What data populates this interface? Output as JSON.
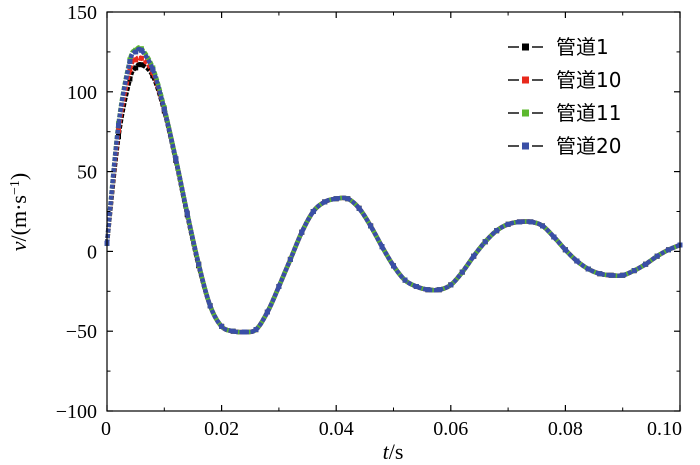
{
  "chart_data": {
    "type": "line",
    "title": "",
    "xlabel": {
      "var": "t",
      "unit": "/s"
    },
    "ylabel": {
      "var": "v",
      "unit": "/(m·s",
      "sup": "−1",
      "close": ")"
    },
    "xlim": [
      0,
      0.1
    ],
    "ylim": [
      -100,
      150
    ],
    "x_ticks": [
      0,
      0.02,
      0.04,
      0.06,
      0.08,
      0.1
    ],
    "x_tick_labels": [
      "0",
      "0.02",
      "0.04",
      "0.06",
      "0.08",
      "0.10"
    ],
    "y_ticks": [
      -100,
      -50,
      0,
      50,
      100,
      150
    ],
    "y_tick_labels": [
      "−100",
      "−50",
      "0",
      "50",
      "100",
      "150"
    ],
    "grid": false,
    "legend_position": "top-right",
    "x": [
      0,
      0.002,
      0.004,
      0.005,
      0.006,
      0.008,
      0.01,
      0.012,
      0.014,
      0.016,
      0.018,
      0.02,
      0.022,
      0.024,
      0.026,
      0.028,
      0.03,
      0.032,
      0.034,
      0.036,
      0.038,
      0.04,
      0.042,
      0.044,
      0.046,
      0.048,
      0.05,
      0.052,
      0.054,
      0.056,
      0.058,
      0.06,
      0.062,
      0.064,
      0.066,
      0.068,
      0.07,
      0.072,
      0.074,
      0.076,
      0.078,
      0.08,
      0.082,
      0.084,
      0.086,
      0.088,
      0.09,
      0.092,
      0.094,
      0.096,
      0.098,
      0.1
    ],
    "series": [
      {
        "name": "管道1",
        "color": "#000000",
        "values": [
          5,
          72,
          108,
          115,
          117,
          110,
          88,
          57,
          23,
          -9,
          -34,
          -47,
          -50,
          -50.5,
          -49,
          -38,
          -22,
          -5,
          12,
          25,
          31,
          33,
          33,
          27,
          16,
          3,
          -9,
          -18,
          -22,
          -24,
          -24,
          -21,
          -13,
          -3,
          6,
          13,
          17,
          18.5,
          18.5,
          16,
          9,
          1,
          -6,
          -11,
          -14,
          -15,
          -15,
          -12,
          -8,
          -3,
          1,
          4
        ]
      },
      {
        "name": "管道10",
        "color": "#e8291c",
        "values": [
          5,
          76,
          114,
          120,
          121,
          112,
          89,
          58,
          24,
          -8,
          -34,
          -47,
          -50,
          -50.5,
          -49,
          -38,
          -22,
          -5,
          12,
          25,
          31,
          33,
          33,
          27,
          16,
          3,
          -9,
          -18,
          -22,
          -24,
          -24,
          -21,
          -13,
          -3,
          6,
          13,
          17,
          18.5,
          18.5,
          16,
          9,
          1,
          -6,
          -11,
          -14,
          -15,
          -15,
          -12,
          -8,
          -3,
          1,
          4
        ]
      },
      {
        "name": "管道11",
        "color": "#5cb82e",
        "values": [
          5,
          80,
          120,
          126,
          127,
          115,
          90,
          58,
          24,
          -8,
          -34,
          -47,
          -50,
          -50.5,
          -49,
          -38,
          -22,
          -5,
          12,
          25,
          31,
          33,
          33,
          27,
          16,
          3,
          -9,
          -18,
          -22,
          -24,
          -24,
          -21,
          -13,
          -3,
          6,
          13,
          17,
          18.5,
          18.5,
          16,
          9,
          1,
          -6,
          -11,
          -14,
          -15,
          -15,
          -12,
          -8,
          -3,
          1,
          4
        ]
      },
      {
        "name": "管道20",
        "color": "#3a4fa6",
        "values": [
          5,
          79,
          119,
          125,
          126,
          114,
          89,
          58,
          24,
          -8,
          -34,
          -47,
          -50,
          -50.5,
          -49,
          -38,
          -22,
          -5,
          12,
          25,
          31,
          33,
          33,
          27,
          16,
          3,
          -9,
          -18,
          -22,
          -24,
          -24,
          -21,
          -13,
          -3,
          6,
          13,
          17,
          18.5,
          18.5,
          16,
          9,
          1,
          -6,
          -11,
          -14,
          -15,
          -15,
          -12,
          -8,
          -3,
          1,
          4
        ]
      }
    ]
  }
}
